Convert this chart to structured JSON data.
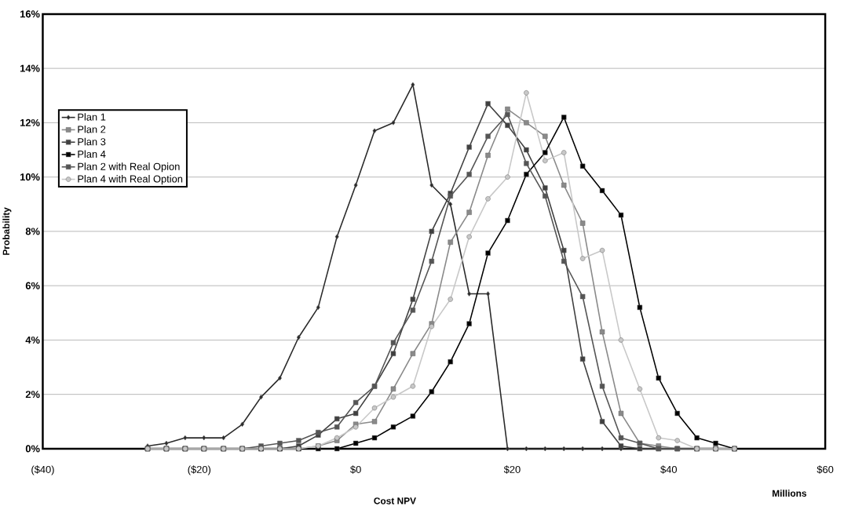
{
  "chart_data": {
    "type": "line",
    "xlabel": "Cost NPV",
    "ylabel": "Probability",
    "annotations": [
      "Millions"
    ],
    "x": [
      -26.6,
      -24.2,
      -21.8,
      -19.4,
      -16.9,
      -14.5,
      -12.1,
      -9.7,
      -7.3,
      -4.8,
      -2.4,
      0,
      2.4,
      4.8,
      7.3,
      9.7,
      12.1,
      14.5,
      16.9,
      19.4,
      21.8,
      24.2,
      26.6,
      29.0,
      31.5,
      33.9,
      36.3,
      38.7,
      41.1,
      43.6,
      46.0,
      48.4
    ],
    "series": [
      {
        "name": "Plan 1",
        "color": "#2a2a2a",
        "marker": "diamond",
        "values": [
          0.1,
          0.2,
          0.4,
          0.4,
          0.4,
          0.9,
          1.9,
          2.6,
          4.1,
          5.2,
          7.8,
          9.7,
          11.7,
          12.0,
          13.4,
          9.7,
          9.0,
          5.7,
          5.7,
          0,
          0,
          0,
          0,
          0,
          0,
          0,
          0,
          0,
          0,
          0,
          0,
          0
        ]
      },
      {
        "name": "Plan 2",
        "color": "#8a8a8a",
        "marker": "square",
        "values": [
          0,
          0,
          0,
          0,
          0,
          0,
          0,
          0,
          0,
          0.1,
          0.3,
          0.9,
          1.0,
          2.2,
          3.5,
          4.6,
          7.6,
          8.7,
          10.8,
          12.5,
          12.0,
          11.5,
          9.7,
          8.3,
          4.3,
          1.3,
          0.2,
          0.1,
          0,
          0,
          0,
          0
        ]
      },
      {
        "name": "Plan 3",
        "color": "#404040",
        "marker": "square",
        "values": [
          0,
          0,
          0,
          0,
          0,
          0,
          0,
          0,
          0.1,
          0.5,
          1.1,
          1.3,
          2.3,
          3.5,
          5.5,
          8.0,
          9.4,
          11.1,
          12.7,
          11.9,
          11.0,
          9.6,
          7.3,
          3.3,
          1.0,
          0.1,
          0,
          0,
          0,
          0,
          0,
          0
        ]
      },
      {
        "name": "Plan 4",
        "color": "#000000",
        "marker": "square",
        "values": [
          0,
          0,
          0,
          0,
          0,
          0,
          0,
          0,
          0,
          0,
          0,
          0.2,
          0.4,
          0.8,
          1.2,
          2.1,
          3.2,
          4.6,
          7.2,
          8.4,
          10.1,
          10.9,
          12.2,
          10.4,
          9.5,
          8.6,
          5.2,
          2.6,
          1.3,
          0.4,
          0.2,
          0
        ]
      },
      {
        "name": "Plan 2 with Real Opion",
        "color": "#555555",
        "marker": "square",
        "values": [
          0,
          0,
          0,
          0,
          0,
          0,
          0.1,
          0.2,
          0.3,
          0.6,
          0.8,
          1.7,
          2.3,
          3.9,
          5.1,
          6.9,
          9.3,
          10.1,
          11.5,
          12.3,
          10.5,
          9.3,
          6.9,
          5.6,
          2.3,
          0.4,
          0.2,
          0,
          0,
          0,
          0,
          0
        ]
      },
      {
        "name": "Plan 4 with Real Option",
        "color": "#c8c8c8",
        "marker": "circle",
        "values": [
          0,
          0,
          0,
          0,
          0,
          0,
          0,
          0,
          0,
          0.1,
          0.4,
          0.8,
          1.5,
          1.9,
          2.3,
          4.5,
          5.5,
          7.8,
          9.2,
          10.0,
          13.1,
          10.6,
          10.9,
          7.0,
          7.3,
          4.0,
          2.2,
          0.4,
          0.3,
          0,
          0,
          0
        ]
      }
    ],
    "xlim": [
      -40,
      60
    ],
    "ylim": [
      0,
      16
    ],
    "xticks": [
      {
        "value": -40,
        "label": "($40)"
      },
      {
        "value": -20,
        "label": "($20)"
      },
      {
        "value": 0,
        "label": "$0"
      },
      {
        "value": 20,
        "label": "$20"
      },
      {
        "value": 40,
        "label": "$40"
      },
      {
        "value": 60,
        "label": "$60"
      }
    ],
    "yticks": [
      {
        "value": 0,
        "label": "0%"
      },
      {
        "value": 2,
        "label": "2%"
      },
      {
        "value": 4,
        "label": "4%"
      },
      {
        "value": 6,
        "label": "6%"
      },
      {
        "value": 8,
        "label": "8%"
      },
      {
        "value": 10,
        "label": "10%"
      },
      {
        "value": 12,
        "label": "12%"
      },
      {
        "value": 14,
        "label": "14%"
      },
      {
        "value": 16,
        "label": "16%"
      }
    ],
    "grid": "y",
    "legend": "top left"
  }
}
